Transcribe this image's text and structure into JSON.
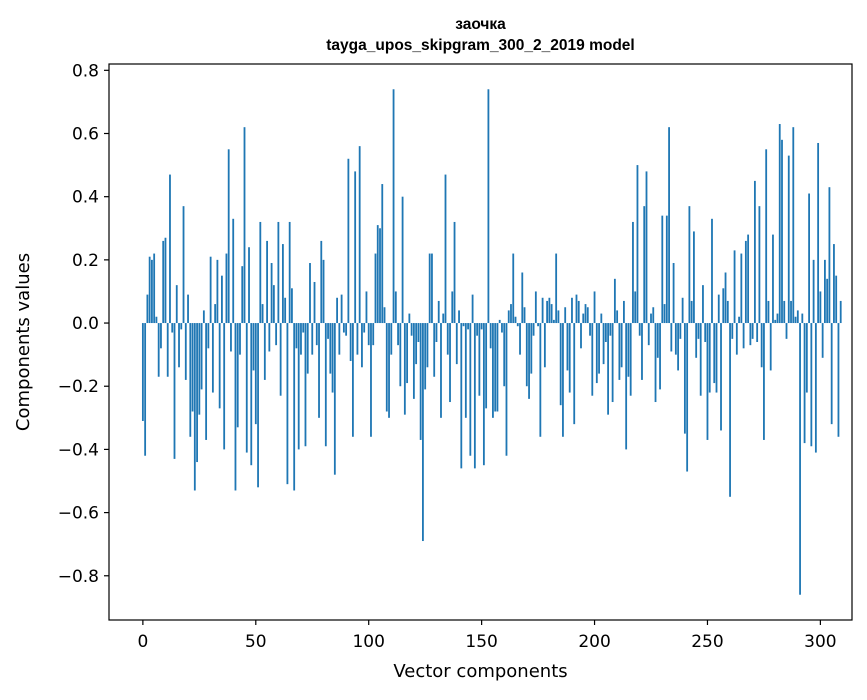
{
  "chart_data": {
    "type": "bar",
    "title": "заочка\ntayga_upos_skipgram_300_2_2019 model",
    "title_lines": [
      "заочка",
      "tayga_upos_skipgram_300_2_2019 model"
    ],
    "xlabel": "Vector components",
    "ylabel": "Components values",
    "xlim": [
      -15,
      314
    ],
    "ylim": [
      -0.94,
      0.82
    ],
    "xticks": [
      0,
      50,
      100,
      150,
      200,
      250,
      300
    ],
    "xtick_labels": [
      "0",
      "50",
      "100",
      "150",
      "200",
      "250",
      "300"
    ],
    "yticks": [
      -0.8,
      -0.6,
      -0.4,
      -0.2,
      0.0,
      0.2,
      0.4,
      0.6,
      0.8
    ],
    "ytick_labels": [
      "−0.8",
      "−0.6",
      "−0.4",
      "−0.2",
      "0.0",
      "0.2",
      "0.4",
      "0.6",
      "0.8"
    ],
    "grid": false,
    "bar_color": "#1f77b4",
    "values": [
      -0.31,
      -0.42,
      0.09,
      0.21,
      0.2,
      0.22,
      0.02,
      -0.17,
      -0.08,
      0.26,
      0.27,
      -0.17,
      0.47,
      -0.03,
      -0.43,
      0.12,
      -0.14,
      -0.02,
      0.37,
      -0.18,
      0.09,
      -0.36,
      -0.28,
      -0.53,
      -0.44,
      -0.29,
      -0.21,
      0.04,
      -0.37,
      -0.08,
      0.21,
      -0.22,
      0.06,
      0.2,
      -0.27,
      0.15,
      -0.4,
      0.22,
      0.55,
      -0.09,
      0.33,
      -0.53,
      -0.33,
      -0.1,
      0.18,
      0.62,
      -0.41,
      0.24,
      -0.45,
      -0.15,
      -0.32,
      -0.52,
      0.32,
      0.06,
      -0.18,
      0.26,
      -0.09,
      0.19,
      0.12,
      -0.07,
      0.32,
      -0.23,
      0.25,
      0.08,
      -0.51,
      0.32,
      0.11,
      -0.53,
      -0.08,
      -0.4,
      -0.1,
      -0.03,
      -0.39,
      -0.16,
      0.19,
      -0.1,
      0.13,
      -0.07,
      -0.3,
      0.26,
      0.2,
      -0.39,
      -0.05,
      -0.16,
      -0.22,
      -0.48,
      0.08,
      -0.1,
      0.09,
      -0.03,
      -0.04,
      0.52,
      -0.12,
      -0.36,
      0.48,
      -0.1,
      0.56,
      -0.14,
      -0.03,
      0.1,
      -0.07,
      -0.36,
      -0.07,
      0.22,
      0.31,
      0.3,
      0.44,
      0.05,
      -0.28,
      -0.3,
      -0.1,
      0.74,
      0.1,
      -0.07,
      -0.2,
      0.4,
      -0.29,
      -0.19,
      0.03,
      -0.04,
      -0.24,
      -0.13,
      -0.06,
      -0.37,
      -0.69,
      -0.21,
      -0.14,
      0.22,
      0.22,
      -0.17,
      -0.06,
      0.07,
      -0.3,
      0.03,
      0.47,
      -0.1,
      -0.25,
      0.1,
      0.32,
      -0.13,
      0.04,
      -0.46,
      -0.01,
      -0.3,
      -0.02,
      -0.42,
      0.09,
      -0.46,
      -0.04,
      -0.23,
      -0.02,
      -0.45,
      -0.27,
      0.74,
      -0.08,
      -0.3,
      -0.28,
      -0.28,
      0.01,
      -0.03,
      -0.2,
      -0.42,
      0.04,
      0.06,
      0.22,
      0.02,
      -0.01,
      -0.1,
      0.16,
      0.05,
      -0.2,
      -0.24,
      -0.16,
      -0.04,
      0.1,
      -0.01,
      -0.36,
      0.08,
      -0.14,
      0.07,
      0.08,
      0.06,
      0.01,
      0.22,
      0.04,
      -0.26,
      -0.36,
      0.05,
      -0.15,
      -0.22,
      0.08,
      -0.32,
      0.09,
      0.07,
      -0.08,
      0.03,
      0.06,
      0.05,
      -0.04,
      -0.23,
      0.1,
      -0.19,
      -0.16,
      0.03,
      -0.13,
      -0.06,
      -0.29,
      -0.04,
      -0.25,
      0.14,
      0.04,
      -0.18,
      -0.14,
      0.07,
      -0.4,
      -0.17,
      -0.23,
      0.32,
      0.1,
      0.5,
      -0.04,
      -0.18,
      0.37,
      0.48,
      -0.07,
      0.03,
      0.05,
      -0.25,
      -0.11,
      -0.21,
      0.34,
      0.06,
      0.34,
      0.62,
      -0.09,
      0.19,
      -0.1,
      -0.15,
      -0.05,
      0.08,
      -0.35,
      -0.47,
      0.37,
      0.07,
      0.29,
      -0.11,
      -0.05,
      -0.23,
      0.12,
      -0.06,
      -0.37,
      -0.22,
      0.33,
      -0.19,
      -0.22,
      0.09,
      -0.34,
      0.11,
      0.16,
      0.07,
      -0.55,
      -0.05,
      0.23,
      -0.1,
      0.02,
      0.22,
      -0.08,
      0.26,
      0.28,
      -0.07,
      -0.05,
      0.45,
      -0.06,
      0.37,
      -0.14,
      -0.37,
      0.55,
      0.07,
      -0.15,
      0.28,
      0.01,
      0.03,
      0.63,
      0.58,
      0.07,
      -0.05,
      0.53,
      0.07,
      0.62,
      0.02,
      0.04,
      -0.86,
      0.03,
      -0.38,
      -0.22,
      0.41,
      -0.39,
      0.2,
      -0.41,
      0.57,
      0.1,
      -0.11,
      0.2,
      0.14,
      0.43,
      -0.32,
      0.25,
      0.15,
      -0.36,
      0.07
    ]
  }
}
